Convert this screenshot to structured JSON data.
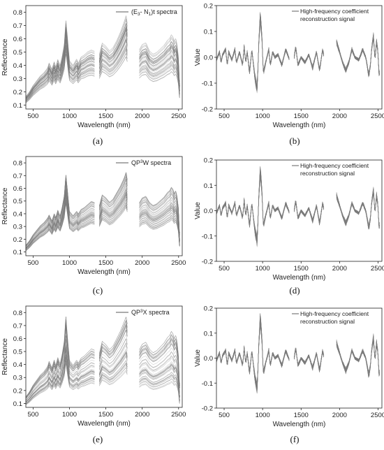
{
  "chart_data": [
    {
      "type": "line",
      "panel": "(a)",
      "xlabel": "Wavelength (nm)",
      "ylabel": "Reflectance",
      "xlim": [
        400,
        2550
      ],
      "ylim": [
        0.07,
        0.85
      ],
      "xticks": [
        500,
        1000,
        1500,
        2000,
        2500
      ],
      "yticks": [
        0.1,
        0.2,
        0.3,
        0.4,
        0.5,
        0.6,
        0.7,
        0.8
      ],
      "ytick_labels": [
        "0.1",
        "0.2",
        "0.3",
        "0.4",
        "0.5",
        "0.6",
        "0.7",
        "0.8"
      ],
      "legend": {
        "position": "top-right",
        "parts": [
          "(E",
          "3",
          "- N",
          "1",
          ")t spectra"
        ]
      },
      "series_count": 60,
      "spread": 0.12,
      "gaps": [
        [
          1350,
          1410
        ],
        [
          1800,
          1960
        ]
      ],
      "mean_profile": {
        "x": [
          400,
          450,
          500,
          550,
          600,
          650,
          700,
          720,
          760,
          790,
          810,
          840,
          870,
          900,
          930,
          950,
          970,
          1000,
          1050,
          1100,
          1120,
          1160,
          1200,
          1250,
          1300,
          1350,
          1410,
          1450,
          1500,
          1550,
          1600,
          1650,
          1700,
          1750,
          1780,
          1800,
          1960,
          2000,
          2050,
          2100,
          2150,
          2200,
          2250,
          2300,
          2350,
          2380,
          2400,
          2420,
          2440,
          2460,
          2480,
          2500,
          2510
        ],
        "y": [
          0.14,
          0.17,
          0.21,
          0.24,
          0.27,
          0.29,
          0.32,
          0.35,
          0.31,
          0.36,
          0.32,
          0.37,
          0.33,
          0.39,
          0.47,
          0.62,
          0.52,
          0.36,
          0.33,
          0.37,
          0.34,
          0.38,
          0.39,
          0.41,
          0.42,
          0.41,
          0.39,
          0.46,
          0.44,
          0.41,
          0.43,
          0.47,
          0.52,
          0.58,
          0.62,
          0.55,
          0.41,
          0.44,
          0.45,
          0.4,
          0.38,
          0.39,
          0.41,
          0.43,
          0.46,
          0.47,
          0.49,
          0.48,
          0.45,
          0.47,
          0.43,
          0.35,
          0.22
        ]
      }
    },
    {
      "type": "line",
      "panel": "(b)",
      "xlabel": "Wavelength (nm)",
      "ylabel": "Value",
      "xlim": [
        400,
        2550
      ],
      "ylim": [
        -0.2,
        0.2
      ],
      "xticks": [
        500,
        1000,
        1500,
        2000,
        2500
      ],
      "yticks": [
        -0.2,
        -0.1,
        0.0,
        0.1,
        0.2
      ],
      "ytick_labels": [
        "-0.2",
        "-0.1",
        "0.0",
        "0.1",
        "0.2"
      ],
      "legend": {
        "position": "top-right",
        "lines": [
          "High-frequency coefficient",
          "reconstruction signal"
        ]
      },
      "series_count": 50,
      "spread": 0.012,
      "gaps": [
        [
          1350,
          1410
        ],
        [
          1800,
          1960
        ]
      ],
      "mean_profile": {
        "x": [
          400,
          440,
          460,
          480,
          520,
          540,
          560,
          600,
          640,
          660,
          700,
          740,
          760,
          780,
          800,
          830,
          860,
          900,
          930,
          950,
          970,
          990,
          1010,
          1040,
          1080,
          1100,
          1130,
          1160,
          1200,
          1250,
          1300,
          1350,
          1410,
          1430,
          1460,
          1500,
          1550,
          1600,
          1650,
          1700,
          1740,
          1780,
          1800,
          1960,
          2000,
          2040,
          2080,
          2120,
          2160,
          2200,
          2250,
          2300,
          2340,
          2380,
          2400,
          2420,
          2440,
          2460,
          2480,
          2500,
          2510
        ],
        "y": [
          -0.01,
          0.02,
          -0.02,
          0.01,
          0.03,
          -0.03,
          0.02,
          -0.01,
          0.03,
          -0.02,
          0.02,
          -0.03,
          0.04,
          -0.02,
          0.02,
          -0.06,
          0.03,
          -0.08,
          -0.12,
          0.05,
          0.16,
          0.08,
          -0.06,
          -0.02,
          0.03,
          -0.03,
          0.02,
          0.0,
          0.01,
          -0.03,
          0.03,
          -0.01,
          0.0,
          0.04,
          -0.03,
          0.0,
          -0.02,
          0.01,
          -0.04,
          0.02,
          -0.05,
          0.03,
          0.0,
          0.06,
          0.02,
          -0.02,
          -0.05,
          -0.02,
          0.03,
          0.0,
          -0.01,
          0.03,
          0.0,
          -0.07,
          -0.03,
          0.04,
          0.08,
          -0.01,
          0.06,
          0.02,
          -0.06
        ]
      }
    },
    {
      "type": "line",
      "panel": "(c)",
      "xlabel": "Wavelength (nm)",
      "ylabel": "Reflectance",
      "xlim": [
        400,
        2550
      ],
      "ylim": [
        0.07,
        0.85
      ],
      "xticks": [
        500,
        1000,
        1500,
        2000,
        2500
      ],
      "yticks": [
        0.1,
        0.2,
        0.3,
        0.4,
        0.5,
        0.6,
        0.7,
        0.8
      ],
      "ytick_labels": [
        "0.1",
        "0.2",
        "0.3",
        "0.4",
        "0.5",
        "0.6",
        "0.7",
        "0.8"
      ],
      "legend": {
        "position": "top-right",
        "parts": [
          "QP",
          "3",
          "W spectra"
        ]
      },
      "series_count": 60,
      "spread": 0.11,
      "gaps": [
        [
          1350,
          1410
        ],
        [
          1800,
          1960
        ]
      ],
      "mean_profile": {
        "x": [
          400,
          450,
          500,
          550,
          600,
          650,
          700,
          720,
          760,
          790,
          810,
          840,
          870,
          900,
          930,
          950,
          970,
          1000,
          1050,
          1100,
          1120,
          1160,
          1200,
          1250,
          1300,
          1350,
          1410,
          1450,
          1500,
          1550,
          1600,
          1650,
          1700,
          1750,
          1780,
          1800,
          1960,
          2000,
          2050,
          2100,
          2150,
          2200,
          2250,
          2300,
          2350,
          2380,
          2400,
          2420,
          2440,
          2460,
          2480,
          2500,
          2510
        ],
        "y": [
          0.13,
          0.16,
          0.2,
          0.23,
          0.26,
          0.28,
          0.31,
          0.33,
          0.29,
          0.34,
          0.31,
          0.36,
          0.32,
          0.38,
          0.46,
          0.6,
          0.5,
          0.35,
          0.32,
          0.35,
          0.33,
          0.36,
          0.37,
          0.39,
          0.41,
          0.4,
          0.38,
          0.45,
          0.43,
          0.4,
          0.42,
          0.46,
          0.5,
          0.55,
          0.59,
          0.52,
          0.39,
          0.42,
          0.43,
          0.39,
          0.37,
          0.38,
          0.4,
          0.42,
          0.45,
          0.46,
          0.48,
          0.47,
          0.44,
          0.46,
          0.42,
          0.34,
          0.2
        ]
      }
    },
    {
      "type": "line",
      "panel": "(d)",
      "xlabel": "Wavelength (nm)",
      "ylabel": "Value",
      "xlim": [
        400,
        2550
      ],
      "ylim": [
        -0.2,
        0.2
      ],
      "xticks": [
        500,
        1000,
        1500,
        2000,
        2500
      ],
      "yticks": [
        -0.2,
        -0.1,
        0.0,
        0.1,
        0.2
      ],
      "ytick_labels": [
        "-0.2",
        "-0.1",
        "0.0",
        "0.1",
        "0.2"
      ],
      "legend": {
        "position": "top-right",
        "lines": [
          "High-frequency coefficient",
          "reconstruction signal"
        ]
      },
      "series_count": 50,
      "spread": 0.012,
      "gaps": [
        [
          1350,
          1410
        ],
        [
          1800,
          1960
        ]
      ],
      "mean_profile": {
        "x": [
          400,
          440,
          460,
          480,
          520,
          540,
          560,
          600,
          640,
          660,
          700,
          740,
          760,
          780,
          800,
          830,
          860,
          900,
          930,
          950,
          970,
          990,
          1010,
          1040,
          1080,
          1100,
          1130,
          1160,
          1200,
          1250,
          1300,
          1350,
          1410,
          1430,
          1460,
          1500,
          1550,
          1600,
          1650,
          1700,
          1740,
          1780,
          1800,
          1960,
          2000,
          2040,
          2080,
          2120,
          2160,
          2200,
          2250,
          2300,
          2340,
          2380,
          2400,
          2420,
          2440,
          2460,
          2480,
          2500,
          2510
        ],
        "y": [
          -0.01,
          0.02,
          -0.02,
          0.01,
          0.03,
          -0.03,
          0.02,
          -0.01,
          0.03,
          -0.02,
          0.02,
          -0.03,
          0.04,
          -0.02,
          0.02,
          -0.06,
          0.03,
          -0.08,
          -0.12,
          0.05,
          0.16,
          0.08,
          -0.06,
          -0.02,
          0.03,
          -0.03,
          0.02,
          0.0,
          0.01,
          -0.03,
          0.03,
          -0.01,
          0.0,
          0.04,
          -0.03,
          0.0,
          -0.02,
          0.01,
          -0.04,
          0.02,
          -0.05,
          0.03,
          0.0,
          0.06,
          0.02,
          -0.02,
          -0.05,
          -0.02,
          0.03,
          0.0,
          -0.01,
          0.03,
          0.0,
          -0.07,
          -0.03,
          0.04,
          0.08,
          -0.01,
          0.06,
          0.02,
          -0.06
        ]
      }
    },
    {
      "type": "line",
      "panel": "(e)",
      "xlabel": "Wavelength (nm)",
      "ylabel": "Reflectance",
      "xlim": [
        400,
        2550
      ],
      "ylim": [
        0.07,
        0.85
      ],
      "xticks": [
        500,
        1000,
        1500,
        2000,
        2500
      ],
      "yticks": [
        0.1,
        0.2,
        0.3,
        0.4,
        0.5,
        0.6,
        0.7,
        0.8
      ],
      "ytick_labels": [
        "0.1",
        "0.2",
        "0.3",
        "0.4",
        "0.5",
        "0.6",
        "0.7",
        "0.8"
      ],
      "legend": {
        "position": "top-right",
        "parts": [
          "QP",
          "3",
          "X spectra"
        ]
      },
      "series_count": 60,
      "spread": 0.18,
      "gaps": [
        [
          1350,
          1410
        ],
        [
          1800,
          1960
        ]
      ],
      "mean_profile": {
        "x": [
          400,
          450,
          500,
          550,
          600,
          650,
          700,
          720,
          760,
          790,
          810,
          840,
          870,
          900,
          930,
          950,
          970,
          1000,
          1050,
          1100,
          1120,
          1160,
          1200,
          1250,
          1300,
          1350,
          1410,
          1450,
          1500,
          1550,
          1600,
          1650,
          1700,
          1750,
          1780,
          1800,
          1960,
          2000,
          2050,
          2100,
          2150,
          2200,
          2250,
          2300,
          2350,
          2380,
          2400,
          2420,
          2440,
          2460,
          2480,
          2500,
          2510
        ],
        "y": [
          0.12,
          0.15,
          0.19,
          0.22,
          0.25,
          0.27,
          0.3,
          0.33,
          0.29,
          0.34,
          0.3,
          0.35,
          0.31,
          0.37,
          0.45,
          0.6,
          0.48,
          0.33,
          0.3,
          0.33,
          0.31,
          0.34,
          0.35,
          0.37,
          0.39,
          0.38,
          0.36,
          0.43,
          0.41,
          0.38,
          0.4,
          0.44,
          0.48,
          0.53,
          0.56,
          0.5,
          0.37,
          0.4,
          0.41,
          0.37,
          0.35,
          0.36,
          0.38,
          0.4,
          0.43,
          0.44,
          0.46,
          0.45,
          0.42,
          0.44,
          0.4,
          0.32,
          0.18
        ]
      }
    },
    {
      "type": "line",
      "panel": "(f)",
      "xlabel": "Wavelength (nm)",
      "ylabel": "Value",
      "xlim": [
        400,
        2550
      ],
      "ylim": [
        -0.2,
        0.2
      ],
      "xticks": [
        500,
        1000,
        1500,
        2000,
        2500
      ],
      "yticks": [
        -0.2,
        -0.1,
        0.0,
        0.1,
        0.2
      ],
      "ytick_labels": [
        "-0.2",
        "-0.1",
        "0.0",
        "0.1",
        "0.2"
      ],
      "legend": {
        "position": "top-right",
        "lines": [
          "High-frequency coefficient",
          "reconstruction signal"
        ]
      },
      "series_count": 50,
      "spread": 0.012,
      "gaps": [
        [
          1350,
          1410
        ],
        [
          1800,
          1960
        ]
      ],
      "mean_profile": {
        "x": [
          400,
          440,
          460,
          480,
          520,
          540,
          560,
          600,
          640,
          660,
          700,
          740,
          760,
          780,
          800,
          830,
          860,
          900,
          930,
          950,
          970,
          990,
          1010,
          1040,
          1080,
          1100,
          1130,
          1160,
          1200,
          1250,
          1300,
          1350,
          1410,
          1430,
          1460,
          1500,
          1550,
          1600,
          1650,
          1700,
          1740,
          1780,
          1800,
          1960,
          2000,
          2040,
          2080,
          2120,
          2160,
          2200,
          2250,
          2300,
          2340,
          2380,
          2400,
          2420,
          2440,
          2460,
          2480,
          2500,
          2510
        ],
        "y": [
          -0.01,
          0.02,
          -0.02,
          0.01,
          0.03,
          -0.03,
          0.02,
          -0.01,
          0.03,
          -0.02,
          0.02,
          -0.03,
          0.04,
          -0.02,
          0.02,
          -0.06,
          0.03,
          -0.08,
          -0.12,
          0.05,
          0.16,
          0.08,
          -0.06,
          -0.02,
          0.03,
          -0.03,
          0.02,
          0.0,
          0.01,
          -0.03,
          0.03,
          -0.01,
          0.0,
          0.04,
          -0.03,
          0.0,
          -0.02,
          0.01,
          -0.04,
          0.02,
          -0.05,
          0.03,
          0.0,
          0.06,
          0.02,
          -0.02,
          -0.05,
          -0.02,
          0.03,
          0.0,
          -0.01,
          0.03,
          0.0,
          -0.07,
          -0.03,
          0.04,
          0.08,
          -0.01,
          0.06,
          0.02,
          -0.06
        ]
      }
    }
  ],
  "style": {
    "line_color": "#7a7a7a",
    "axis_color": "#222222"
  }
}
